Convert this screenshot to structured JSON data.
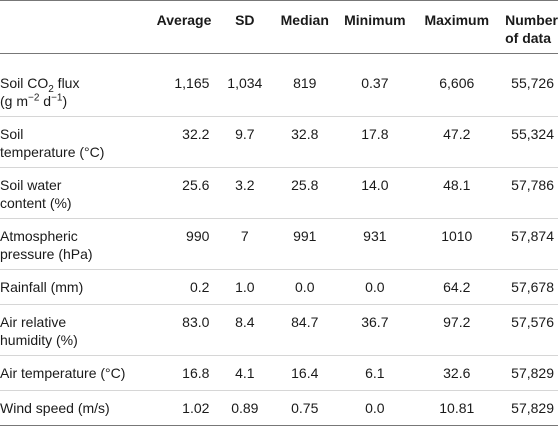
{
  "table": {
    "headers": {
      "label": "",
      "average": "Average",
      "sd": "SD",
      "median": "Median",
      "minimum": "Minimum",
      "maximum": "Maximum",
      "count_line1": "Number",
      "count_line2": "of data"
    },
    "rows": [
      {
        "label_line1_pre": "Soil CO",
        "label_line1_sub": "2",
        "label_line1_post": " flux",
        "label_line2_pre": "(g m",
        "label_line2_sup1": "−2",
        "label_line2_mid": " d",
        "label_line2_sup2": "−1",
        "label_line2_post": ")",
        "average": "1,165",
        "sd": "1,034",
        "median": "819",
        "minimum": "0.37",
        "maximum": "6,606",
        "count": "55,726"
      },
      {
        "label_line1": "Soil",
        "label_line2": "temperature (°C)",
        "average": "32.2",
        "sd": "9.7",
        "median": "32.8",
        "minimum": "17.8",
        "maximum": "47.2",
        "count": "55,324"
      },
      {
        "label_line1": "Soil water",
        "label_line2": "content (%)",
        "average": "25.6",
        "sd": "3.2",
        "median": "25.8",
        "minimum": "14.0",
        "maximum": "48.1",
        "count": "57,786"
      },
      {
        "label_line1": "Atmospheric",
        "label_line2": "pressure (hPa)",
        "average": "990",
        "sd": "7",
        "median": "991",
        "minimum": "931",
        "maximum": "1010",
        "count": "57,874"
      },
      {
        "label": "Rainfall (mm)",
        "average": "0.2",
        "sd": "1.0",
        "median": "0.0",
        "minimum": "0.0",
        "maximum": "64.2",
        "count": "57,678"
      },
      {
        "label_line1": "Air relative",
        "label_line2": "humidity (%)",
        "average": "83.0",
        "sd": "8.4",
        "median": "84.7",
        "minimum": "36.7",
        "maximum": "97.2",
        "count": "57,576"
      },
      {
        "label": "Air temperature (°C)",
        "average": "16.8",
        "sd": "4.1",
        "median": "16.4",
        "minimum": "6.1",
        "maximum": "32.6",
        "count": "57,829"
      },
      {
        "label": "Wind speed (m/s)",
        "average": "1.02",
        "sd": "0.89",
        "median": "0.75",
        "minimum": "0.0",
        "maximum": "10.81",
        "count": "57,829"
      }
    ]
  }
}
